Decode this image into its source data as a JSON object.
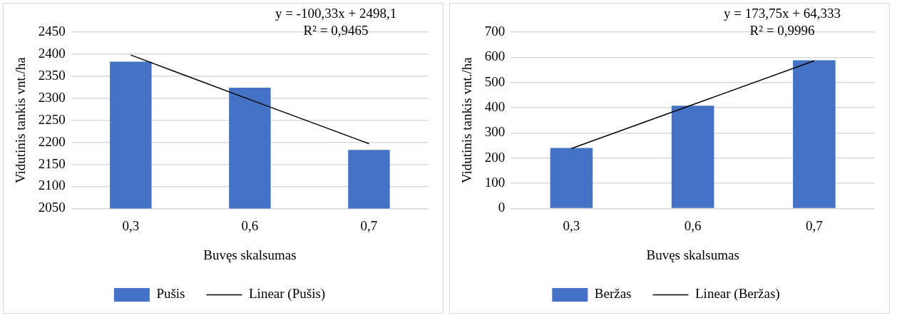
{
  "chart_data": [
    {
      "type": "bar",
      "xlabel": "Buvęs skalsumas",
      "ylabel": "Vidutinis tankis vnt./ha",
      "categories": [
        "0,3",
        "0,6",
        "0,7"
      ],
      "series": [
        {
          "name": "Pušis",
          "color": "#4472c4",
          "values": [
            2383,
            2324,
            2183
          ]
        },
        {
          "name": "Linear (Pušis)",
          "type": "line",
          "color": "#000000",
          "values": [
            2398,
            2297,
            2197
          ]
        }
      ],
      "ylim": [
        2050,
        2450
      ],
      "yticks": [
        2050,
        2100,
        2150,
        2200,
        2250,
        2300,
        2350,
        2400,
        2450
      ],
      "grid": "y",
      "legend": "bottom",
      "marker": "none",
      "line_style": "solid",
      "annotations": [
        "y = -100,33x + 2498,1",
        "R² = 0,9465"
      ]
    },
    {
      "type": "bar",
      "xlabel": "Buvęs skalsumas",
      "ylabel": "Vidutinis tankis vnt./ha",
      "categories": [
        "0,3",
        "0,6",
        "0,7"
      ],
      "series": [
        {
          "name": "Beržas",
          "color": "#4472c4",
          "values": [
            240,
            408,
            588
          ]
        },
        {
          "name": "Linear (Beržas)",
          "type": "line",
          "color": "#000000",
          "values": [
            238,
            412,
            586
          ]
        }
      ],
      "ylim": [
        0,
        700
      ],
      "yticks": [
        0,
        100,
        200,
        300,
        400,
        500,
        600,
        700
      ],
      "grid": "y",
      "legend": "bottom",
      "marker": "none",
      "line_style": "solid",
      "annotations": [
        "y = 173,75x + 64,333",
        "R² = 0,9996"
      ]
    }
  ]
}
